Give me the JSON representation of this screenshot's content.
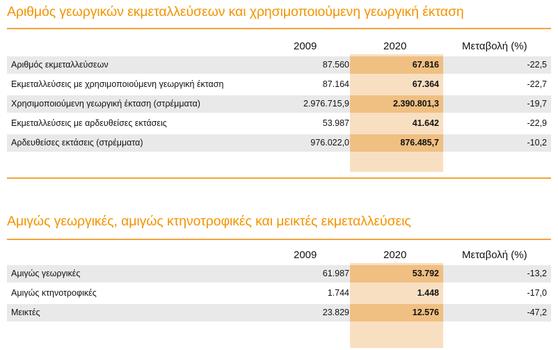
{
  "colors": {
    "accent": "#f29400",
    "highlight_light": "#f8dfc2",
    "highlight_dark": "#f0bf82",
    "row_shade": "#e9e9e9"
  },
  "table1": {
    "title": "Αριθμός γεωργικών εκμεταλλεύσεων και χρησιμοποιούμενη γεωργική έκταση",
    "headers": {
      "y2009": "2009",
      "y2020": "2020",
      "change": "Μεταβολή (%)"
    },
    "rows": [
      {
        "label": "Αριθμός εκμεταλλεύσεων",
        "v2009": "87.560",
        "v2020": "67.816",
        "change": "-22,5"
      },
      {
        "label": "Εκμεταλλεύσεις με χρησιμοποιούμενη γεωργική έκταση",
        "v2009": "87.164",
        "v2020": "67.364",
        "change": "-22,7"
      },
      {
        "label": "Χρησιμοποιούμενη γεωργική έκταση (στρέμματα)",
        "v2009": "2.976.715,9",
        "v2020": "2.390.801,3",
        "change": "-19,7"
      },
      {
        "label": "Εκμεταλλεύσεις με αρδευθείσες εκτάσεις",
        "v2009": "53.987",
        "v2020": "41.642",
        "change": "-22,9"
      },
      {
        "label": "Αρδευθείσες εκτάσεις (στρέμματα)",
        "v2009": "976.022,0",
        "v2020": "876.485,7",
        "change": "-10,2"
      }
    ]
  },
  "table2": {
    "title": "Αμιγώς γεωργικές, αμιγώς κτηνοτροφικές και μεικτές εκμεταλλεύσεις",
    "headers": {
      "y2009": "2009",
      "y2020": "2020",
      "change": "Μεταβολή (%)"
    },
    "rows": [
      {
        "label": "Αμιγώς γεωργικές",
        "v2009": "61.987",
        "v2020": "53.792",
        "change": "-13,2"
      },
      {
        "label": "Αμιγώς κτηνοτροφικές",
        "v2009": "1.744",
        "v2020": "1.448",
        "change": "-17,0"
      },
      {
        "label": "Μεικτές",
        "v2009": "23.829",
        "v2020": "12.576",
        "change": "-47,2"
      }
    ]
  }
}
